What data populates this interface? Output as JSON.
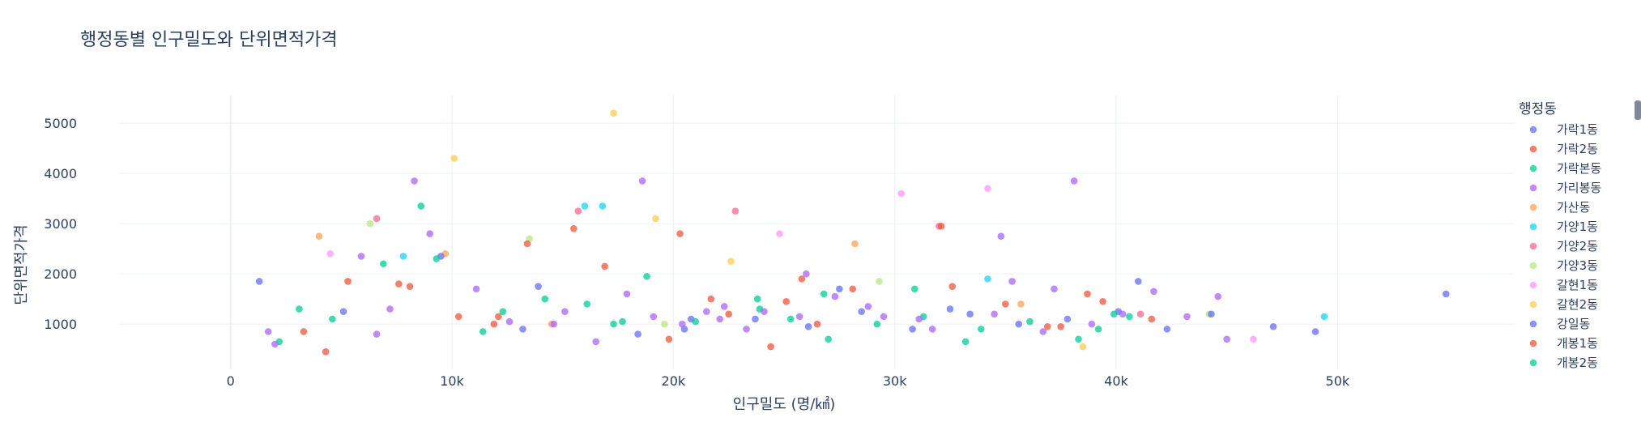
{
  "chart_data": {
    "type": "scatter",
    "title": "행정동별 인구밀도와 단위면적가격",
    "xlabel": "인구밀도 (명/㎢)",
    "ylabel": "단위면적가격",
    "xlim": [
      -5000,
      58000
    ],
    "ylim": [
      100,
      5550
    ],
    "xticks": [
      0,
      10000,
      20000,
      30000,
      40000,
      50000
    ],
    "xtick_labels": [
      "0",
      "10k",
      "20k",
      "30k",
      "40k",
      "50k"
    ],
    "yticks": [
      1000,
      2000,
      3000,
      4000,
      5000
    ],
    "ytick_labels": [
      "1000",
      "2000",
      "3000",
      "4000",
      "5000"
    ],
    "grid": true,
    "legend_title": "행정동",
    "legend_position": "right",
    "colors": [
      "#636efa",
      "#ef553b",
      "#00cc96",
      "#ab63fa",
      "#ffa15a",
      "#19d3f3",
      "#ff6692",
      "#b6e880",
      "#ff97ff",
      "#fecb52"
    ],
    "series": [
      {
        "name": "가락1동",
        "x": [
          13200,
          27500,
          41000,
          20800,
          32500
        ],
        "y": [
          900,
          1700,
          1850,
          1100,
          1300
        ]
      },
      {
        "name": "가락2동",
        "x": [
          12100,
          25800,
          36900,
          22500,
          8100
        ],
        "y": [
          1150,
          1900,
          950,
          1200,
          1750
        ]
      },
      {
        "name": "가락본동",
        "x": [
          8600,
          17700,
          30900,
          23800,
          39200
        ],
        "y": [
          3350,
          1050,
          1700,
          1500,
          900
        ]
      },
      {
        "name": "가리봉동",
        "x": [
          8300,
          18600,
          38100,
          26000,
          34800
        ],
        "y": [
          3850,
          3850,
          3850,
          2000,
          2750
        ]
      },
      {
        "name": "가산동",
        "x": [
          4000,
          14500,
          28200,
          35700,
          9700
        ],
        "y": [
          2750,
          1000,
          2600,
          1400,
          2400
        ]
      },
      {
        "name": "가양1동",
        "x": [
          16000,
          16800,
          34200,
          49400,
          7800
        ],
        "y": [
          3350,
          3350,
          1900,
          1150,
          2350
        ]
      },
      {
        "name": "가양2동",
        "x": [
          15700,
          22800,
          6600,
          32000,
          41100
        ],
        "y": [
          3250,
          3250,
          3100,
          2950,
          1200
        ]
      },
      {
        "name": "가양3동",
        "x": [
          6300,
          13500,
          29300,
          44200,
          19600
        ],
        "y": [
          3000,
          2700,
          1850,
          1200,
          1000
        ]
      },
      {
        "name": "갈현1동",
        "x": [
          30300,
          34200,
          4500,
          24800,
          46200
        ],
        "y": [
          3600,
          3700,
          2400,
          2800,
          700
        ]
      },
      {
        "name": "갈현2동",
        "x": [
          17300,
          10100,
          19200,
          22600,
          38500
        ],
        "y": [
          5200,
          4300,
          3100,
          2250,
          550
        ]
      },
      {
        "name": "강일동",
        "x": [
          1300,
          5100,
          9500,
          13900,
          18400,
          20500,
          23700,
          26100,
          28500,
          30800,
          33400,
          35600,
          37800,
          40100,
          42300,
          44300,
          47100,
          49000,
          54900
        ],
        "y": [
          1850,
          1250,
          2350,
          1750,
          800,
          900,
          1100,
          950,
          1250,
          900,
          1200,
          1000,
          1100,
          1250,
          900,
          1200,
          950,
          850,
          1600
        ]
      },
      {
        "name": "개봉1동",
        "x": [
          3300,
          5300,
          7600,
          10300,
          13400,
          15500,
          16900,
          20300,
          21700,
          24400,
          26500,
          28100,
          32600,
          35000,
          37500,
          39400,
          41600,
          4300,
          11900,
          25100,
          32100,
          38700,
          19800
        ],
        "y": [
          850,
          1850,
          1800,
          1150,
          2600,
          2900,
          2150,
          2800,
          1500,
          550,
          1000,
          1700,
          1750,
          1400,
          950,
          1450,
          1100,
          450,
          1000,
          1450,
          2950,
          1600,
          700
        ]
      },
      {
        "name": "개봉2동",
        "x": [
          3100,
          4600,
          9300,
          12300,
          14200,
          16100,
          18800,
          21000,
          23900,
          25300,
          27000,
          29200,
          31300,
          33900,
          36100,
          38300,
          40600,
          2200,
          6900,
          11400,
          17300,
          26800,
          33200,
          39900
        ],
        "y": [
          1300,
          1100,
          2300,
          1250,
          1500,
          1400,
          1950,
          1050,
          1300,
          1100,
          700,
          1000,
          1150,
          900,
          1050,
          700,
          1150,
          650,
          2200,
          850,
          1000,
          1600,
          650,
          1200
        ]
      },
      {
        "name": "",
        "x": [
          2000,
          5900,
          6600,
          11100,
          14600,
          16500,
          19100,
          20400,
          22300,
          24100,
          27300,
          29500,
          31700,
          34500,
          36700,
          38900,
          41700,
          44600,
          1700,
          7200,
          12600,
          15100,
          17900,
          21500,
          23300,
          25700,
          28800,
          31100,
          35300,
          37200,
          40300,
          43200,
          45000,
          9000,
          22100
        ],
        "y": [
          600,
          2350,
          800,
          1700,
          1000,
          650,
          1150,
          1000,
          1350,
          1250,
          1550,
          1150,
          900,
          1200,
          850,
          1000,
          1650,
          1550,
          850,
          1300,
          1050,
          1250,
          1600,
          1250,
          900,
          1150,
          1350,
          1100,
          1850,
          1700,
          1200,
          1150,
          700,
          2800,
          1100
        ]
      }
    ]
  }
}
